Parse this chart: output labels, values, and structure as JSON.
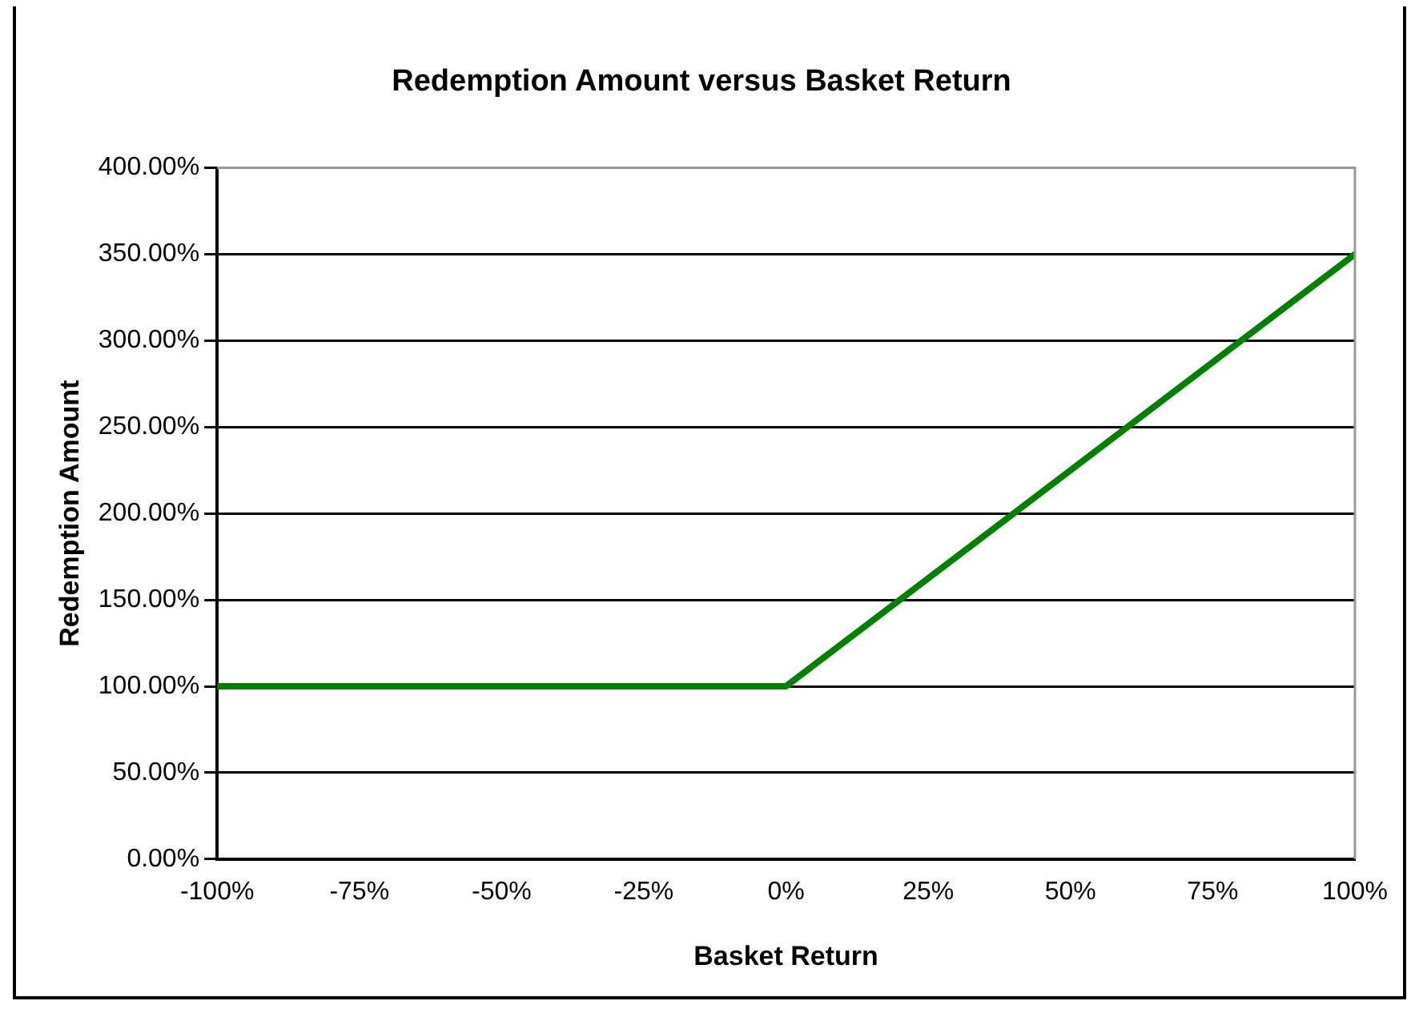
{
  "chart_data": {
    "type": "line",
    "title": "Redemption Amount versus Basket Return",
    "xlabel": "Basket Return",
    "ylabel": "Redemption Amount",
    "x": [
      -100,
      0,
      100
    ],
    "series": [
      {
        "color": "#008000",
        "values": [
          100,
          100,
          350
        ]
      }
    ],
    "xlim": [
      -100,
      100
    ],
    "xticks": [
      {
        "value": -100,
        "label": "-100%"
      },
      {
        "value": -75,
        "label": "-75%"
      },
      {
        "value": -50,
        "label": "-50%"
      },
      {
        "value": -25,
        "label": "-25%"
      },
      {
        "value": 0,
        "label": "0%"
      },
      {
        "value": 25,
        "label": "25%"
      },
      {
        "value": 50,
        "label": "50%"
      },
      {
        "value": 75,
        "label": "75%"
      },
      {
        "value": 100,
        "label": "100%"
      }
    ],
    "ylim": [
      0,
      400
    ],
    "yticks": [
      {
        "value": 0,
        "label": "0.00%"
      },
      {
        "value": 50,
        "label": "50.00%"
      },
      {
        "value": 100,
        "label": "100.00%"
      },
      {
        "value": 150,
        "label": "150.00%"
      },
      {
        "value": 200,
        "label": "200.00%"
      },
      {
        "value": 250,
        "label": "250.00%"
      },
      {
        "value": 300,
        "label": "300.00%"
      },
      {
        "value": 350,
        "label": "350.00%"
      },
      {
        "value": 400,
        "label": "400.00%"
      }
    ],
    "grid": "y",
    "legend": false,
    "marker": "none",
    "line_style": "solid"
  }
}
